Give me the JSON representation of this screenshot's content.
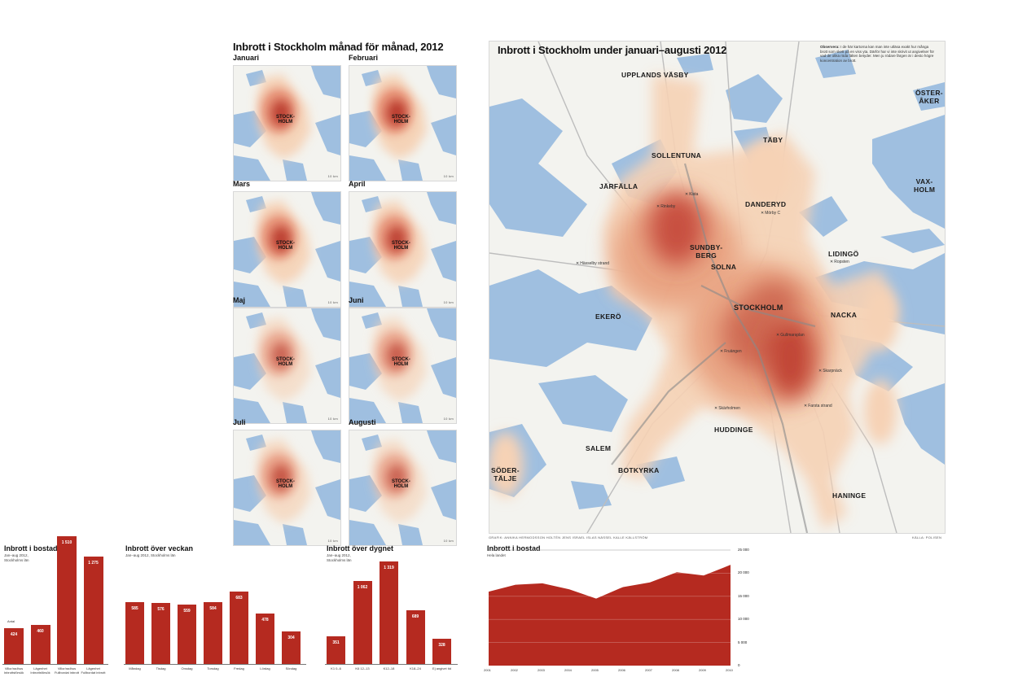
{
  "small_multiples": {
    "title": "Inbrott i Stockholm månad för månad, 2012",
    "city_label_line1": "STOCK-",
    "city_label_line2": "HOLM",
    "scale": "10 km",
    "months": [
      "Januari",
      "Februari",
      "Mars",
      "April",
      "Maj",
      "Juni",
      "Juli",
      "Augusti"
    ]
  },
  "main_map": {
    "title": "Inbrott i Stockholm under januari–augusti 2012",
    "note_label": "Observera:",
    "note_text": "I de här kartorna kan man inte utläsa exakt hur många brott som skett på en viss yta. Därför har vi inte skrivit ut angivelser för vad de olika röda fälten betyder. Men ju rödare färgen är i desto högre koncentration av brott.",
    "municipalities": {
      "upplands_vasby": "UPPLANDS VÄSBY",
      "sollentuna": "SOLLENTUNA",
      "taby": "TÄBY",
      "osteraker_1": "ÖSTER-",
      "osteraker_2": "ÅKER",
      "vaxholm_1": "VAX-",
      "vaxholm_2": "HOLM",
      "jarfalla": "JÄRFÄLLA",
      "danderyd": "DANDERYD",
      "sundbyberg_1": "SUNDBY-",
      "sundbyberg_2": "BERG",
      "solna": "SOLNA",
      "lidingo": "LIDINGÖ",
      "ekero": "EKERÖ",
      "stockholm": "STOCKHOLM",
      "nacka": "NACKA",
      "huddinge": "HUDDINGE",
      "salem": "SALEM",
      "botkyrka": "BOTKYRKA",
      "sodertalje_1": "SÖDER-",
      "sodertalje_2": "TÄLJE",
      "haninge": "HANINGE"
    },
    "places": [
      "Mörby C",
      "Kista",
      "Rinkeby",
      "Ropsten",
      "Hässelby strand",
      "Skärholmen",
      "Fruängen",
      "Skarpnäck",
      "Farsta strand",
      "Gullmarsplan"
    ],
    "credit": "GRAFIK: ANNIKA HERMODSSON HOLTÉN JENS ISRAEL ISLAS NÄSSEL KALLE KÄLLSTRÖM",
    "source": "KÄLLA: POLISEN"
  },
  "chart_data": [
    {
      "type": "bar",
      "title": "Inbrott i bostad",
      "subtitle_line1": "Jan–aug 2012,",
      "subtitle_line2": "Stockholms län",
      "categories": [
        "Villor/radhus Inbrottsförsök",
        "Lägenhet Inbrottsförsök",
        "Villor/radhus Fullbordat inbrott",
        "Lägenhet Fullbordat inbrott"
      ],
      "category_line1": [
        "Villor/radhus",
        "Lägenhet",
        "Villor/radhus",
        "Lägenhet"
      ],
      "category_line2": [
        "Inbrottsförsök",
        "Inbrottsförsök",
        "Fullbordat inbrott",
        "Fullbordat inbrott"
      ],
      "values": [
        424,
        460,
        1510,
        1275
      ],
      "value_labels": [
        "424",
        "460",
        "1 510",
        "1 275"
      ],
      "annotation": "Antal",
      "ylim": [
        0,
        1600
      ]
    },
    {
      "type": "bar",
      "title": "Inbrott över veckan",
      "subtitle": "Jan–aug 2012, Stockholms län",
      "categories": [
        "Måndag",
        "Tisdag",
        "Onsdag",
        "Torsdag",
        "Fredag",
        "Lördag",
        "Söndag"
      ],
      "values": [
        585,
        576,
        559,
        584,
        683,
        478,
        304
      ],
      "value_labels": [
        "585",
        "576",
        "559",
        "584",
        "683",
        "478",
        "304"
      ],
      "ylim": [
        0,
        750
      ]
    },
    {
      "type": "bar",
      "title": "Inbrott över dygnet",
      "subtitle_line1": "Jan–aug 2012,",
      "subtitle_line2": "Stockholms län",
      "categories": [
        "00–06",
        "06–12",
        "12–18",
        "18–24",
        "Ej angivet"
      ],
      "category_labels": [
        "K1 0–6",
        "K6 12–13",
        "K12–18",
        "K18–24",
        "Ej angivet tid"
      ],
      "values": [
        351,
        1062,
        1319,
        689,
        328
      ],
      "value_labels": [
        "351",
        "1 062",
        "1 319",
        "689",
        "328"
      ],
      "ylim": [
        0,
        1400
      ]
    },
    {
      "type": "area",
      "title": "Inbrott i bostad",
      "subtitle": "Hela landet",
      "x": [
        2001,
        2002,
        2003,
        2004,
        2005,
        2006,
        2007,
        2008,
        2009,
        2010
      ],
      "values": [
        16000,
        17500,
        17800,
        16500,
        14500,
        17000,
        18000,
        20200,
        19500,
        21800
      ],
      "yticks": [
        0,
        5000,
        10000,
        15000,
        20000,
        25000
      ],
      "ytick_labels": [
        "0",
        "5 000",
        "10 000",
        "15 000",
        "20 000",
        "25 000"
      ],
      "ylim": [
        0,
        25000
      ],
      "color": "#b52a20"
    }
  ],
  "colors": {
    "water": "#9fbfe0",
    "land": "#f3f3ef",
    "heat_low": "#f6d2b5",
    "heat_mid": "#e58a6f",
    "heat_high": "#b8392c",
    "bar": "#b52a20"
  }
}
